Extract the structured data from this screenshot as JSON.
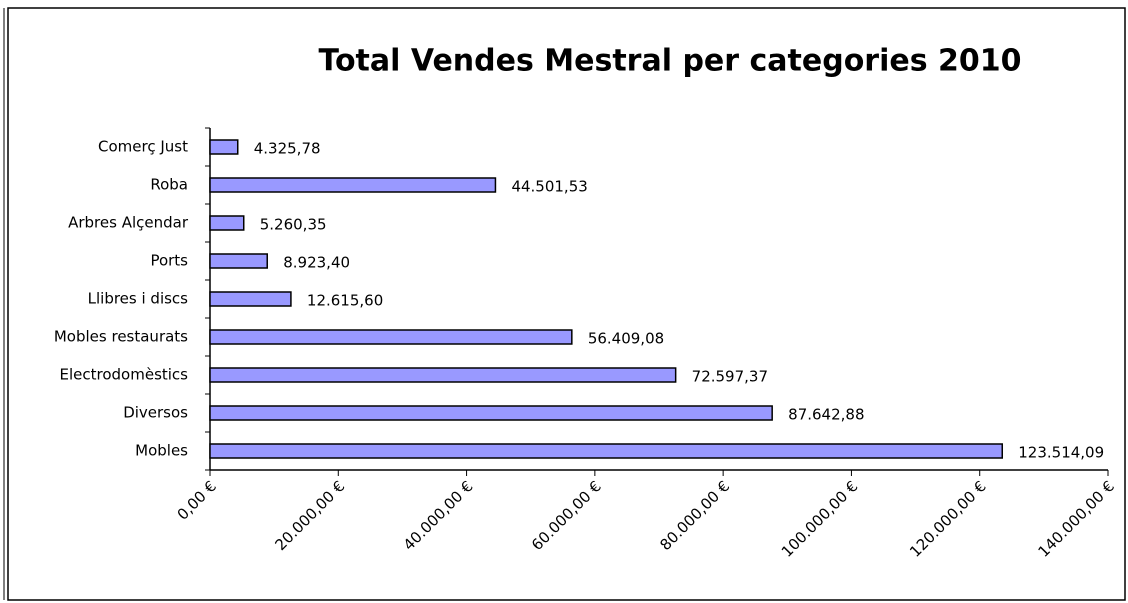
{
  "chart_data": {
    "type": "barh",
    "title": "Total Vendes Mestral per categories 2010",
    "categories": [
      "Comerç Just",
      "Roba",
      "Arbres Alçendar",
      "Ports",
      "Llibres i discs",
      "Mobles restaurats",
      "Electrodomèstics",
      "Diversos",
      "Mobles"
    ],
    "values": [
      4325.78,
      44501.53,
      5260.35,
      8923.4,
      12615.6,
      56409.08,
      72597.37,
      87642.88,
      123514.09
    ],
    "value_labels": [
      "4.325,78",
      "44.501,53",
      "5.260,35",
      "8.923,40",
      "12.615,60",
      "56.409,08",
      "72.597,37",
      "87.642,88",
      "123.514,09"
    ],
    "color": "#9999ff",
    "xlim": [
      0,
      140000
    ],
    "xticks": [
      {
        "value": 0,
        "label": "0,00 €"
      },
      {
        "value": 20000,
        "label": "20.000,00 €"
      },
      {
        "value": 40000,
        "label": "40.000,00 €"
      },
      {
        "value": 60000,
        "label": "60.000,00 €"
      },
      {
        "value": 80000,
        "label": "80.000,00 €"
      },
      {
        "value": 100000,
        "label": "100.000,00 €"
      },
      {
        "value": 120000,
        "label": "120.000,00 €"
      },
      {
        "value": 140000,
        "label": "140.000,00 €"
      }
    ]
  }
}
